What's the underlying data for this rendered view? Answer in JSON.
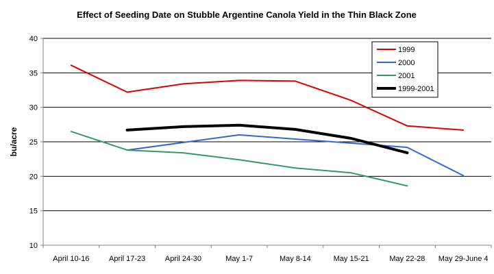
{
  "chart_data": {
    "type": "line",
    "title": "Effect of Seeding Date on Stubble Argentine Canola Yield in the Thin Black Zone",
    "xlabel": "",
    "ylabel": "bu/acre",
    "categories": [
      "April 10-16",
      "April 17-23",
      "April 24-30",
      "May 1-7",
      "May 8-14",
      "May 15-21",
      "May 22-28",
      "May 29-June 4"
    ],
    "ylim": [
      10,
      40
    ],
    "yticks": [
      10,
      15,
      20,
      25,
      30,
      35,
      40
    ],
    "grid": "horizontal",
    "legend_position": "top-right",
    "series": [
      {
        "name": "1999",
        "color": "#dd0000",
        "width": 2,
        "values": [
          36.1,
          32.2,
          33.4,
          33.9,
          33.8,
          31.0,
          27.3,
          26.7
        ]
      },
      {
        "name": "2000",
        "color": "#3366dd",
        "width": 2,
        "values": [
          null,
          23.8,
          24.9,
          26.0,
          25.4,
          24.8,
          24.2,
          20.1
        ]
      },
      {
        "name": "2001",
        "color": "#339966",
        "width": 2,
        "values": [
          26.5,
          23.8,
          23.4,
          22.4,
          21.2,
          20.5,
          18.6,
          null
        ]
      },
      {
        "name": "1999-2001",
        "color": "#000000",
        "width": 4,
        "values": [
          null,
          26.7,
          27.2,
          27.4,
          26.8,
          25.5,
          23.4,
          null
        ]
      }
    ]
  }
}
